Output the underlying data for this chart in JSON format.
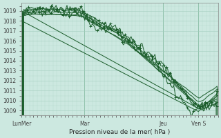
{
  "title": "Pression niveau de la mer( hPa )",
  "ylabel_values": [
    1009,
    1010,
    1011,
    1012,
    1013,
    1014,
    1015,
    1016,
    1017,
    1018,
    1019
  ],
  "ylim": [
    1008.5,
    1019.8
  ],
  "xlim": [
    0,
    100
  ],
  "xtick_positions": [
    0,
    32,
    72,
    90
  ],
  "xtick_labels": [
    "LunMer",
    "Mar",
    "Jeu",
    "Ven S"
  ],
  "bg_color": "#cce8e0",
  "grid_color": "#a0ccbb",
  "line_color": "#1a5c2a",
  "n_points": 200
}
